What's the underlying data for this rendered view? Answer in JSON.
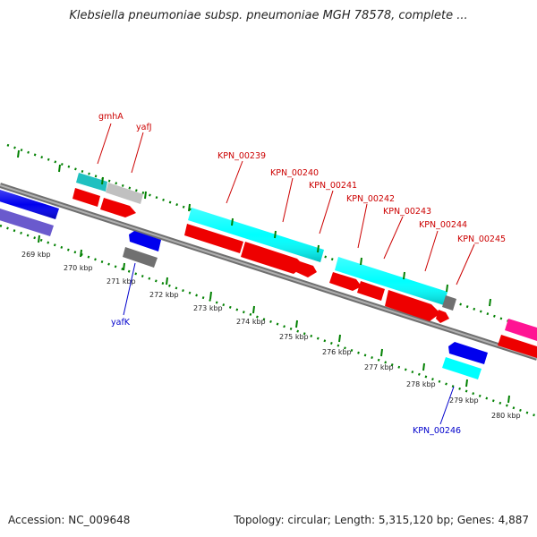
{
  "header": {
    "title": "Klebsiella pneumoniae subsp. pneumoniae MGH 78578, complete ..."
  },
  "footer": {
    "accession": "Accession: NC_009648",
    "summary": "Topology: circular; Length: 5,315,120 bp; Genes: 4,887"
  },
  "colors": {
    "cds": "#ff0000",
    "gene_cyan": "#00ffff",
    "gene_blue": "#0000ff",
    "gene_grey": "#c0c0c0",
    "label_forward": "#cc0000",
    "label_reverse": "#0000cc",
    "tick_mark": "#008000",
    "backbone": "#888888"
  },
  "scale": {
    "ticks": [
      "269 kbp",
      "270 kbp",
      "271 kbp",
      "272 kbp",
      "273 kbp",
      "274 kbp",
      "275 kbp",
      "276 kbp",
      "277 kbp",
      "278 kbp",
      "279 kbp",
      "280 kbp"
    ]
  },
  "genes": {
    "forward": [
      "gmhA",
      "yafJ",
      "KPN_00239",
      "KPN_00240",
      "KPN_00241",
      "KPN_00242",
      "KPN_00243",
      "KPN_00244",
      "KPN_00245"
    ],
    "reverse": [
      "yafK",
      "KPN_00246"
    ]
  }
}
